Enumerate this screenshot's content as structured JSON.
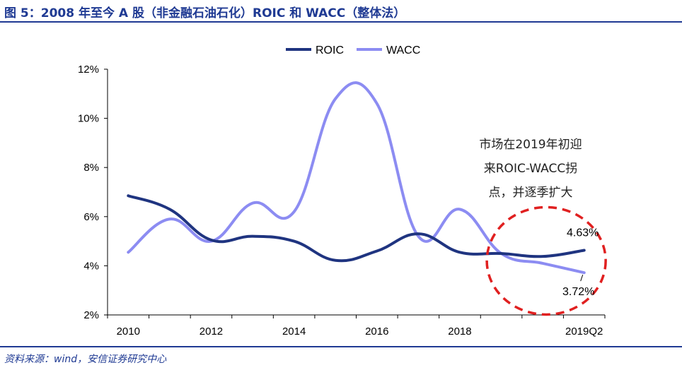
{
  "title": "图 5：2008 年至今 A 股（非金融石油石化）ROIC 和 WACC（整体法）",
  "source": "资料来源：wind，安信证券研究中心",
  "annotation": {
    "lines": [
      "市场在2019年初迎",
      "来ROIC-WACC拐",
      "点，并逐季扩大"
    ]
  },
  "end_labels": {
    "roic": "4.63%",
    "wacc": "3.72%"
  },
  "colors": {
    "roic": "#1f3480",
    "wacc": "#8c8cf2",
    "highlight": "#e02020",
    "axis": "#000000",
    "title": "#1f3a93"
  },
  "chart_data": {
    "type": "line",
    "x": [
      "2010",
      "2011",
      "2012",
      "2013",
      "2014",
      "2015",
      "2016",
      "2017",
      "2018",
      "2018Q4",
      "2019Q1",
      "2019Q2"
    ],
    "x_tick_labels": [
      "2010",
      "2012",
      "2014",
      "2016",
      "2018",
      "2019Q2"
    ],
    "x_tick_values": [
      "2010",
      "2012",
      "2014",
      "2016",
      "2018",
      "2019Q2"
    ],
    "y_tick_labels": [
      "2%",
      "4%",
      "6%",
      "8%",
      "10%",
      "12%"
    ],
    "ylim": [
      2,
      12
    ],
    "y_unit": "%",
    "legend_position": "top-center",
    "grid": false,
    "series": [
      {
        "name": "ROIC",
        "key": "roic",
        "values": [
          6.85,
          6.3,
          5.05,
          5.2,
          5.0,
          4.22,
          4.6,
          5.3,
          4.55,
          4.5,
          4.38,
          4.63
        ]
      },
      {
        "name": "WACC",
        "key": "wacc",
        "values": [
          4.55,
          5.9,
          5.0,
          6.55,
          6.2,
          10.8,
          10.6,
          5.2,
          6.3,
          4.5,
          4.1,
          3.72
        ]
      }
    ]
  }
}
